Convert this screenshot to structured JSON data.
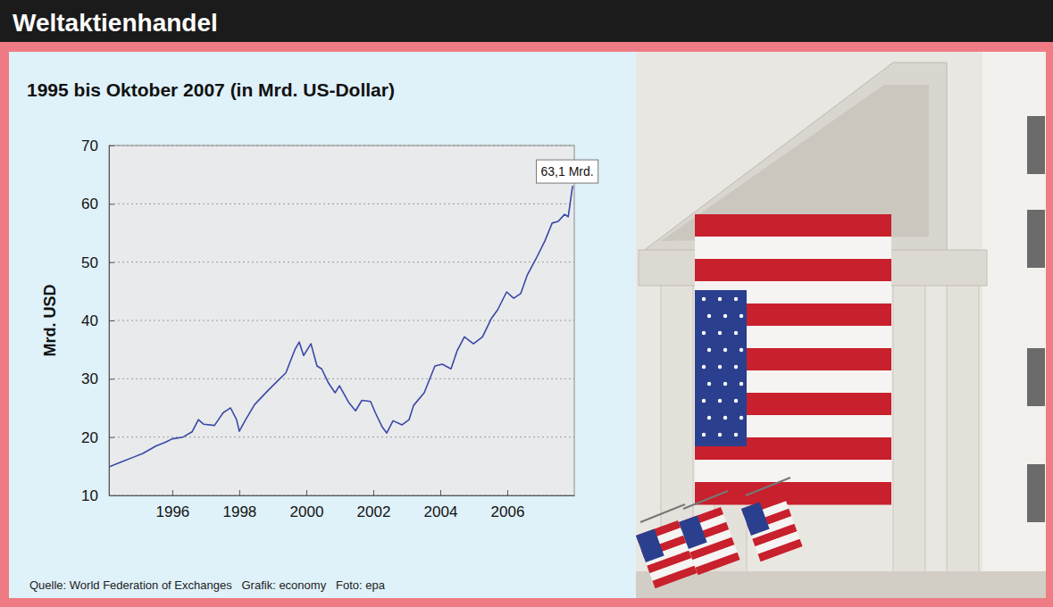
{
  "chart_data": {
    "type": "line",
    "title": "Weltaktienhandel",
    "subtitle": "1995 bis Oktober 2007 (in Mrd. US-Dollar)",
    "y_label": "Mrd. USD",
    "x": [
      1994.11,
      1994.46,
      1994.86,
      1995.12,
      1995.52,
      1995.79,
      1996.0,
      1996.32,
      1996.59,
      1996.78,
      1996.94,
      1997.26,
      1997.52,
      1997.74,
      1997.92,
      1998.0,
      1998.19,
      1998.46,
      1998.86,
      1999.12,
      1999.39,
      1999.66,
      1999.79,
      1999.92,
      2000.14,
      2000.32,
      2000.46,
      2000.67,
      2000.86,
      2000.99,
      2001.26,
      2001.47,
      2001.66,
      2001.92,
      2002.06,
      2002.27,
      2002.4,
      2002.59,
      2002.86,
      2003.07,
      2003.2,
      2003.52,
      2003.84,
      2004.06,
      2004.32,
      2004.51,
      2004.72,
      2004.99,
      2005.26,
      2005.52,
      2005.71,
      2005.98,
      2006.19,
      2006.4,
      2006.59,
      2006.86,
      2007.12,
      2007.34,
      2007.52,
      2007.71,
      2007.82,
      2007.95
    ],
    "values": [
      14.9,
      15.7,
      16.6,
      17.2,
      18.5,
      19.1,
      19.7,
      20.0,
      20.9,
      23.0,
      22.2,
      22.0,
      24.2,
      25.0,
      23.0,
      21.0,
      23.0,
      25.6,
      28.0,
      29.5,
      31.0,
      35.0,
      36.3,
      34.0,
      36.0,
      32.2,
      31.7,
      29.2,
      27.6,
      28.8,
      26.0,
      24.5,
      26.3,
      26.1,
      24.2,
      21.7,
      20.7,
      22.8,
      22.1,
      23.0,
      25.4,
      27.6,
      32.2,
      32.5,
      31.7,
      34.9,
      37.2,
      36.0,
      37.2,
      40.3,
      41.8,
      44.9,
      43.8,
      44.6,
      47.7,
      50.6,
      53.6,
      56.7,
      57.0,
      58.2,
      57.8,
      63.1
    ],
    "color": "#3a48a8",
    "xlim": [
      1994.11,
      2008.0
    ],
    "xticks": [
      1996,
      1998,
      2000,
      2002,
      2004,
      2006
    ],
    "ylim": [
      10,
      70
    ],
    "yticks": [
      10,
      20,
      30,
      40,
      50,
      60,
      70
    ],
    "grid": true,
    "annotations": [
      {
        "text": "63,1 Mrd.",
        "x": 2007.95,
        "y": 63.1
      }
    ],
    "source": "Quelle: World Federation of Exchanges   Grafik: economy   Foto: epa"
  }
}
